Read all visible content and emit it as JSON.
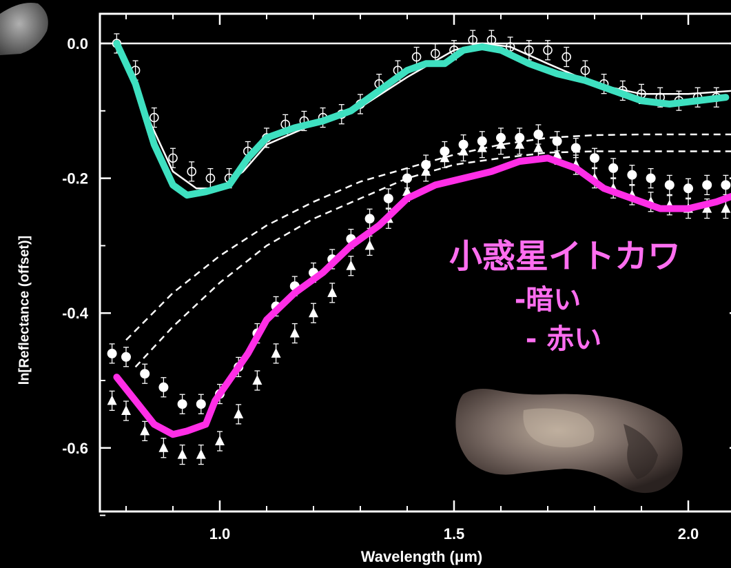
{
  "chart_data": {
    "type": "scatter",
    "title": "",
    "xlabel": "Wavelength (μm)",
    "ylabel": "ln[Reflectance (offset)]",
    "xlim": [
      0.75,
      2.1
    ],
    "ylim": [
      -0.7,
      0.05
    ],
    "x_ticks": [
      "1.0",
      "1.5",
      "2.0"
    ],
    "y_ticks": [
      "0.0",
      "-0.2",
      "-0.4",
      "-0.6"
    ],
    "x_tick_values": [
      1.0,
      1.5,
      2.0
    ],
    "y_tick_values": [
      0.0,
      -0.2,
      -0.4,
      -0.6
    ],
    "grid": false,
    "series": [
      {
        "kind": "line",
        "color": "#3ee0c0",
        "x": [
          0.78,
          0.82,
          0.86,
          0.9,
          0.93,
          0.97,
          1.02,
          1.06,
          1.1,
          1.16,
          1.22,
          1.28,
          1.34,
          1.4,
          1.44,
          1.48,
          1.52,
          1.56,
          1.6,
          1.66,
          1.72,
          1.78,
          1.84,
          1.9,
          1.96,
          2.02,
          2.08
        ],
        "y": [
          0.0,
          -0.06,
          -0.15,
          -0.21,
          -0.225,
          -0.22,
          -0.21,
          -0.17,
          -0.14,
          -0.125,
          -0.115,
          -0.1,
          -0.07,
          -0.04,
          -0.03,
          -0.03,
          -0.01,
          -0.005,
          -0.01,
          -0.03,
          -0.045,
          -0.055,
          -0.07,
          -0.085,
          -0.09,
          -0.085,
          -0.08
        ]
      },
      {
        "kind": "line",
        "color": "#ff2ee6",
        "x": [
          0.78,
          0.82,
          0.86,
          0.9,
          0.93,
          0.97,
          0.99,
          1.02,
          1.06,
          1.1,
          1.16,
          1.22,
          1.28,
          1.34,
          1.4,
          1.46,
          1.52,
          1.58,
          1.64,
          1.7,
          1.76,
          1.82,
          1.88,
          1.94,
          2.0,
          2.06,
          2.1
        ],
        "y": [
          -0.495,
          -0.53,
          -0.565,
          -0.58,
          -0.575,
          -0.565,
          -0.53,
          -0.5,
          -0.46,
          -0.41,
          -0.37,
          -0.34,
          -0.3,
          -0.27,
          -0.23,
          -0.21,
          -0.2,
          -0.19,
          -0.175,
          -0.17,
          -0.185,
          -0.215,
          -0.23,
          -0.245,
          -0.245,
          -0.235,
          -0.225
        ]
      },
      {
        "kind": "points",
        "marker": "open-circle",
        "x": [
          0.78,
          0.82,
          0.86,
          0.9,
          0.94,
          0.98,
          1.02,
          1.06,
          1.1,
          1.14,
          1.18,
          1.22,
          1.26,
          1.3,
          1.34,
          1.38,
          1.42,
          1.46,
          1.5,
          1.54,
          1.58,
          1.62,
          1.66,
          1.7,
          1.74,
          1.78,
          1.82,
          1.86,
          1.9,
          1.94,
          1.98,
          2.02,
          2.06
        ],
        "y": [
          0.0,
          -0.04,
          -0.11,
          -0.17,
          -0.19,
          -0.2,
          -0.2,
          -0.16,
          -0.14,
          -0.12,
          -0.115,
          -0.11,
          -0.105,
          -0.09,
          -0.06,
          -0.04,
          -0.02,
          -0.015,
          -0.01,
          0.005,
          0.005,
          -0.005,
          -0.01,
          -0.01,
          -0.02,
          -0.04,
          -0.06,
          -0.07,
          -0.075,
          -0.08,
          -0.085,
          -0.08,
          -0.08
        ]
      },
      {
        "kind": "points",
        "marker": "filled-circle",
        "x": [
          0.77,
          0.8,
          0.84,
          0.88,
          0.92,
          0.96,
          1.0,
          1.04,
          1.08,
          1.12,
          1.16,
          1.2,
          1.24,
          1.28,
          1.32,
          1.36,
          1.4,
          1.44,
          1.48,
          1.52,
          1.56,
          1.6,
          1.64,
          1.68,
          1.72,
          1.76,
          1.8,
          1.84,
          1.88,
          1.92,
          1.96,
          2.0,
          2.04,
          2.08
        ],
        "y": [
          -0.46,
          -0.465,
          -0.49,
          -0.51,
          -0.535,
          -0.535,
          -0.52,
          -0.48,
          -0.43,
          -0.39,
          -0.36,
          -0.34,
          -0.32,
          -0.29,
          -0.26,
          -0.23,
          -0.2,
          -0.18,
          -0.16,
          -0.15,
          -0.145,
          -0.14,
          -0.14,
          -0.135,
          -0.145,
          -0.155,
          -0.17,
          -0.185,
          -0.195,
          -0.2,
          -0.21,
          -0.215,
          -0.21,
          -0.21
        ]
      },
      {
        "kind": "points",
        "marker": "filled-triangle",
        "x": [
          0.77,
          0.8,
          0.84,
          0.88,
          0.92,
          0.96,
          1.0,
          1.04,
          1.08,
          1.12,
          1.16,
          1.2,
          1.24,
          1.28,
          1.32,
          1.36,
          1.4,
          1.44,
          1.48,
          1.52,
          1.56,
          1.6,
          1.64,
          1.68,
          1.72,
          1.76,
          1.8,
          1.84,
          1.88,
          1.92,
          1.96,
          2.0,
          2.04,
          2.08
        ],
        "y": [
          -0.53,
          -0.545,
          -0.575,
          -0.6,
          -0.61,
          -0.61,
          -0.59,
          -0.55,
          -0.5,
          -0.46,
          -0.43,
          -0.4,
          -0.37,
          -0.33,
          -0.3,
          -0.26,
          -0.22,
          -0.19,
          -0.17,
          -0.16,
          -0.155,
          -0.15,
          -0.15,
          -0.155,
          -0.165,
          -0.18,
          -0.2,
          -0.215,
          -0.225,
          -0.235,
          -0.24,
          -0.245,
          -0.245,
          -0.245
        ]
      },
      {
        "kind": "dashed",
        "x": [
          0.8,
          0.9,
          1.0,
          1.1,
          1.2,
          1.3,
          1.4,
          1.5,
          1.6,
          1.7,
          1.8,
          1.9,
          2.0,
          2.1
        ],
        "y": [
          -0.44,
          -0.37,
          -0.315,
          -0.27,
          -0.235,
          -0.205,
          -0.185,
          -0.165,
          -0.15,
          -0.14,
          -0.136,
          -0.135,
          -0.135,
          -0.135
        ]
      },
      {
        "kind": "dashed",
        "x": [
          0.82,
          0.9,
          1.0,
          1.1,
          1.2,
          1.3,
          1.4,
          1.5,
          1.6,
          1.7,
          1.8,
          1.9,
          2.0,
          2.1
        ],
        "y": [
          -0.48,
          -0.42,
          -0.355,
          -0.3,
          -0.26,
          -0.23,
          -0.2,
          -0.18,
          -0.17,
          -0.162,
          -0.16,
          -0.16,
          -0.16,
          -0.16
        ]
      },
      {
        "kind": "fit",
        "x": [
          0.78,
          0.84,
          0.9,
          0.95,
          1.0,
          1.05,
          1.1,
          1.2,
          1.3,
          1.4,
          1.5,
          1.56,
          1.62,
          1.7,
          1.8,
          1.9,
          2.0,
          2.1
        ],
        "y": [
          0.0,
          -0.1,
          -0.19,
          -0.215,
          -0.215,
          -0.19,
          -0.15,
          -0.12,
          -0.095,
          -0.05,
          -0.01,
          0.0,
          -0.005,
          -0.03,
          -0.06,
          -0.075,
          -0.075,
          -0.07
        ]
      }
    ]
  },
  "annotations": {
    "title_line1": "小惑星イトカワ",
    "title_line2": "-暗い",
    "title_line3": "- 赤い",
    "annotation_color": "#ff6ef0"
  },
  "thumbnail": {
    "name": "asteroid-image"
  }
}
